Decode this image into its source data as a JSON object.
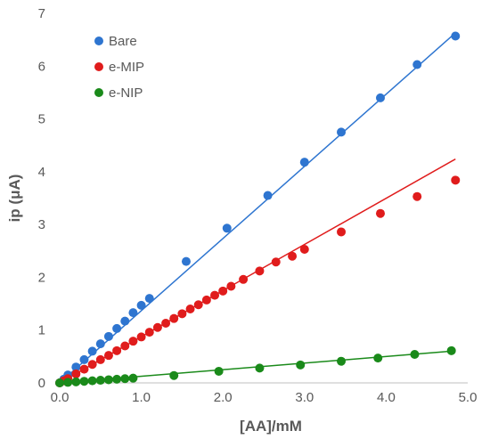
{
  "chart_data": {
    "type": "scatter",
    "xlabel": "[AA]/mM",
    "ylabel": "ip (μA)",
    "xlim": [
      0,
      5
    ],
    "ylim": [
      0,
      7
    ],
    "x_ticks": [
      "0.0",
      "1.0",
      "2.0",
      "3.0",
      "4.0",
      "5.0"
    ],
    "y_ticks": [
      "0",
      "1",
      "2",
      "3",
      "4",
      "5",
      "6",
      "7"
    ],
    "grid": false,
    "legend": "top-left",
    "series": [
      {
        "name": "Bare",
        "color": "#2E75D0",
        "trendline": {
          "x": [
            0.0,
            4.85
          ],
          "y": [
            0.0,
            6.63
          ]
        },
        "x": [
          0.0,
          0.05,
          0.1,
          0.2,
          0.3,
          0.4,
          0.5,
          0.6,
          0.7,
          0.8,
          0.9,
          1.0,
          1.1,
          1.55,
          2.05,
          2.55,
          3.0,
          3.45,
          3.93,
          4.38,
          4.85
        ],
        "y": [
          0.0,
          0.07,
          0.15,
          0.3,
          0.44,
          0.6,
          0.74,
          0.88,
          1.03,
          1.17,
          1.33,
          1.47,
          1.6,
          2.3,
          2.93,
          3.55,
          4.18,
          4.75,
          5.4,
          6.03,
          6.57
        ]
      },
      {
        "name": "e-MIP",
        "color": "#E01C1C",
        "trendline": {
          "x": [
            0.0,
            4.85
          ],
          "y": [
            0.0,
            4.24
          ]
        },
        "x": [
          0.0,
          0.05,
          0.1,
          0.2,
          0.3,
          0.4,
          0.5,
          0.6,
          0.7,
          0.8,
          0.9,
          1.0,
          1.1,
          1.2,
          1.3,
          1.4,
          1.5,
          1.6,
          1.7,
          1.8,
          1.9,
          2.0,
          2.1,
          2.25,
          2.45,
          2.65,
          2.85,
          3.0,
          3.45,
          3.93,
          4.38,
          4.85
        ],
        "y": [
          0.0,
          0.04,
          0.08,
          0.17,
          0.26,
          0.35,
          0.44,
          0.52,
          0.61,
          0.7,
          0.79,
          0.87,
          0.96,
          1.05,
          1.13,
          1.22,
          1.31,
          1.4,
          1.48,
          1.57,
          1.66,
          1.74,
          1.83,
          1.96,
          2.12,
          2.29,
          2.4,
          2.53,
          2.86,
          3.21,
          3.53,
          3.84
        ]
      },
      {
        "name": "e-NIP",
        "color": "#1A8A1A",
        "trendline": {
          "x": [
            0.0,
            4.8
          ],
          "y": [
            0.0,
            0.6
          ]
        },
        "x": [
          0.0,
          0.1,
          0.2,
          0.3,
          0.4,
          0.5,
          0.6,
          0.7,
          0.8,
          0.9,
          1.4,
          1.95,
          2.45,
          2.95,
          3.45,
          3.9,
          4.35,
          4.8
        ],
        "y": [
          0.0,
          0.01,
          0.02,
          0.03,
          0.04,
          0.05,
          0.06,
          0.07,
          0.08,
          0.09,
          0.14,
          0.22,
          0.28,
          0.34,
          0.41,
          0.47,
          0.54,
          0.61
        ]
      }
    ]
  }
}
